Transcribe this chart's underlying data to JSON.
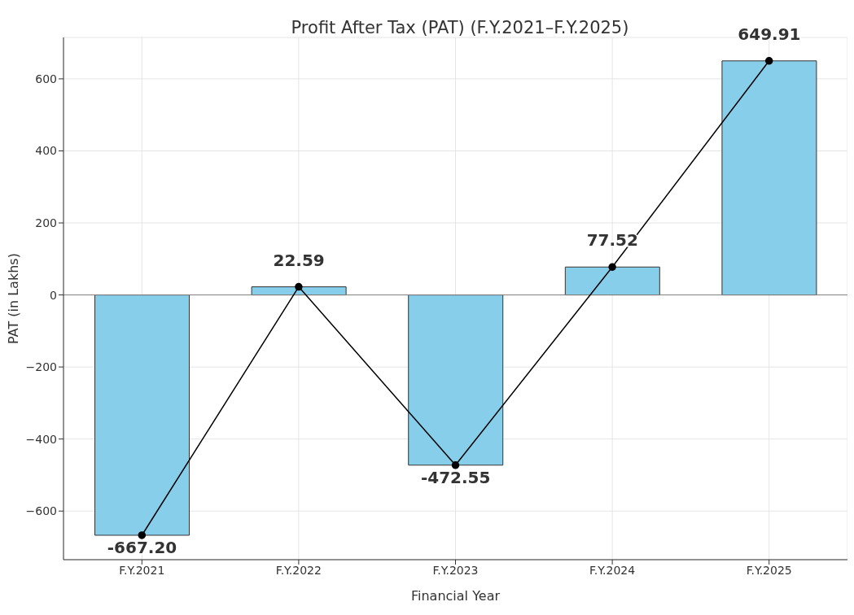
{
  "chart_data": {
    "type": "bar",
    "title": "Profit After Tax (PAT) (F.Y.2021–F.Y.2025)",
    "xlabel": "Financial Year",
    "ylabel": "PAT (in Lakhs)",
    "categories": [
      "F.Y.2021",
      "F.Y.2022",
      "F.Y.2023",
      "F.Y.2024",
      "F.Y.2025"
    ],
    "series": [
      {
        "color": "#87ceeb",
        "values": [
          -667.2,
          22.59,
          -472.55,
          77.52,
          649.91
        ],
        "value_labels": [
          "-667.20",
          "22.59",
          "-472.55",
          "77.52",
          "649.91"
        ]
      },
      {
        "type": "line",
        "color": "#000000",
        "values": [
          -667.2,
          22.59,
          -472.55,
          77.52,
          649.91
        ],
        "marker": "circle",
        "line_style": "solid"
      }
    ],
    "ylim": [
      -735,
      715
    ],
    "yticks": [
      {
        "value": -600,
        "label": "−600"
      },
      {
        "value": -400,
        "label": "−400"
      },
      {
        "value": -200,
        "label": "−200"
      },
      0,
      200,
      400,
      600
    ],
    "ref_lines": [
      {
        "axis": "y",
        "value": 0,
        "color": "#808080"
      }
    ],
    "grid": true,
    "legend": false
  }
}
